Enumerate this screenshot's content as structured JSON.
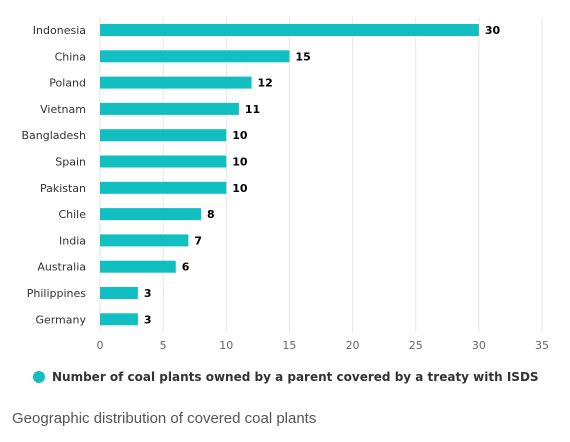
{
  "chart_data": {
    "type": "bar",
    "orientation": "horizontal",
    "categories": [
      "Indonesia",
      "China",
      "Poland",
      "Vietnam",
      "Bangladesh",
      "Spain",
      "Pakistan",
      "Chile",
      "India",
      "Australia",
      "Philippines",
      "Germany"
    ],
    "series": [
      {
        "name": "Number of coal plants owned by a parent covered by a treaty with ISDS",
        "values": [
          30,
          15,
          12,
          11,
          10,
          10,
          10,
          8,
          7,
          6,
          3,
          3
        ]
      }
    ],
    "x_ticks": [
      "0",
      "5",
      "10",
      "15",
      "20",
      "25",
      "30",
      "35"
    ],
    "xlim": [
      0,
      35
    ],
    "grid": "vertical",
    "legend_position": "bottom",
    "color": "#12bfc0"
  },
  "caption": "Geographic distribution of covered coal plants"
}
